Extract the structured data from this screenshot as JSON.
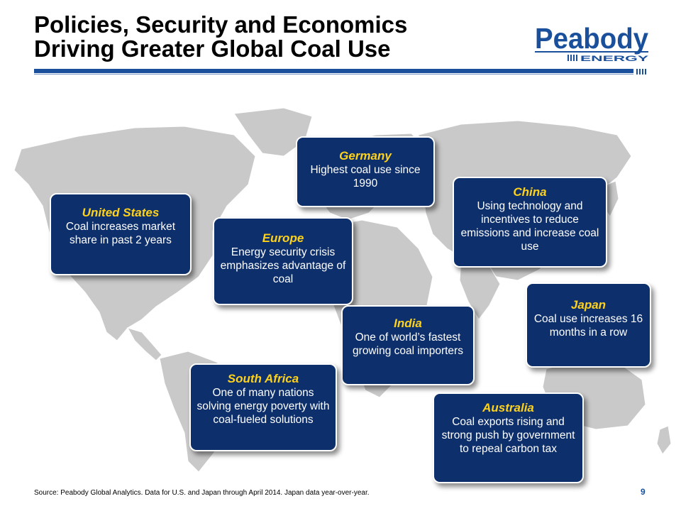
{
  "title": {
    "line1": "Policies, Security and Economics",
    "line2": "Driving Greater Global Coal Use"
  },
  "logo": {
    "name": "Peabody",
    "sub": "ENERGY"
  },
  "callouts": [
    {
      "id": "us",
      "head": "United States",
      "body": "Coal increases market share in past 2 years"
    },
    {
      "id": "germany",
      "head": "Germany",
      "body": "Highest coal use since 1990"
    },
    {
      "id": "europe",
      "head": "Europe",
      "body": "Energy security crisis emphasizes advantage of coal"
    },
    {
      "id": "china",
      "head": "China",
      "body": "Using technology and incentives to reduce emissions and increase coal use"
    },
    {
      "id": "india",
      "head": "India",
      "body": "One of world’s fastest growing coal importers"
    },
    {
      "id": "japan",
      "head": "Japan",
      "body": "Coal use increases 16 months in a row"
    },
    {
      "id": "south_africa",
      "head": "South Africa",
      "body": "One of many nations solving energy poverty with coal-fueled solutions"
    },
    {
      "id": "australia",
      "head": "Australia",
      "body": "Coal exports rising and strong push by government to repeal carbon tax"
    }
  ],
  "footnote": "Source:  Peabody Global Analytics.  Data for U.S. and Japan through April 2014. Japan data year-over-year.",
  "page_number": "9",
  "colors": {
    "callout_bg": "#0d2f6b",
    "callout_head": "#ffd21a",
    "rule": "#1a4f9c",
    "map_land": "#c9c9c9"
  }
}
